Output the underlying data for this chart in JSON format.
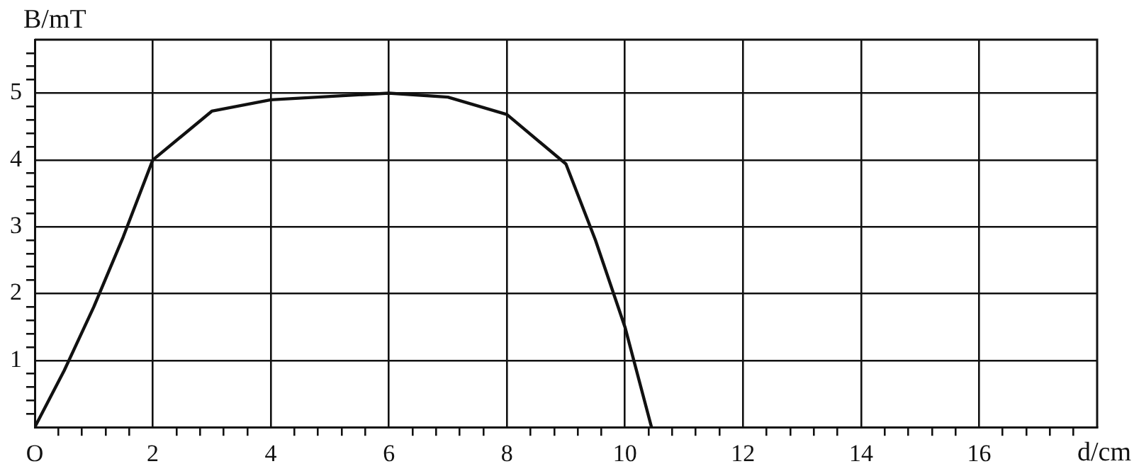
{
  "chart_data": {
    "type": "line",
    "xlabel": "d/cm",
    "ylabel": "B/mT",
    "x": [
      0,
      0.5,
      1,
      1.5,
      2,
      3,
      4,
      6,
      7,
      8,
      9,
      9.5,
      10,
      10.45
    ],
    "series": [
      {
        "color": "#111111",
        "values": [
          0,
          0.85,
          1.8,
          2.85,
          4,
          4.73,
          4.9,
          5,
          4.94,
          4.68,
          3.94,
          2.8,
          1.5,
          0
        ]
      }
    ],
    "xlim": [
      0,
      18
    ],
    "xticks": [
      {
        "value": 0,
        "label": "O"
      },
      {
        "value": 0.4,
        "label": null
      },
      {
        "value": 0.8,
        "label": null
      },
      {
        "value": 1.2,
        "label": null
      },
      {
        "value": 1.6,
        "label": null
      },
      2,
      {
        "value": 2.4,
        "label": null
      },
      {
        "value": 2.8,
        "label": null
      },
      {
        "value": 3.2,
        "label": null
      },
      {
        "value": 3.6,
        "label": null
      },
      4,
      {
        "value": 4.4,
        "label": null
      },
      {
        "value": 4.8,
        "label": null
      },
      {
        "value": 5.2,
        "label": null
      },
      {
        "value": 5.6,
        "label": null
      },
      6,
      {
        "value": 6.4,
        "label": null
      },
      {
        "value": 6.8,
        "label": null
      },
      {
        "value": 7.2,
        "label": null
      },
      {
        "value": 7.6,
        "label": null
      },
      8,
      {
        "value": 8.4,
        "label": null
      },
      {
        "value": 8.8,
        "label": null
      },
      {
        "value": 9.2,
        "label": null
      },
      {
        "value": 9.6,
        "label": null
      },
      10,
      {
        "value": 10.4,
        "label": null
      },
      {
        "value": 10.8,
        "label": null
      },
      {
        "value": 11.2,
        "label": null
      },
      {
        "value": 11.6,
        "label": null
      },
      12,
      {
        "value": 12.4,
        "label": null
      },
      {
        "value": 12.8,
        "label": null
      },
      {
        "value": 13.2,
        "label": null
      },
      {
        "value": 13.6,
        "label": null
      },
      14,
      {
        "value": 14.4,
        "label": null
      },
      {
        "value": 14.8,
        "label": null
      },
      {
        "value": 15.2,
        "label": null
      },
      {
        "value": 15.6,
        "label": null
      },
      16,
      {
        "value": 16.4,
        "label": null
      },
      {
        "value": 16.8,
        "label": null
      },
      {
        "value": 17.2,
        "label": null
      },
      {
        "value": 17.6,
        "label": null
      }
    ],
    "ylim": [
      0,
      5.8
    ],
    "yticks": [
      {
        "value": 0.2,
        "label": null
      },
      {
        "value": 0.4,
        "label": null
      },
      {
        "value": 0.6,
        "label": null
      },
      {
        "value": 0.8,
        "label": null
      },
      1,
      {
        "value": 1.2,
        "label": null
      },
      {
        "value": 1.4,
        "label": null
      },
      {
        "value": 1.6,
        "label": null
      },
      {
        "value": 1.8,
        "label": null
      },
      2,
      {
        "value": 2.2,
        "label": null
      },
      {
        "value": 2.4,
        "label": null
      },
      {
        "value": 2.6,
        "label": null
      },
      {
        "value": 2.8,
        "label": null
      },
      3,
      {
        "value": 3.2,
        "label": null
      },
      {
        "value": 3.4,
        "label": null
      },
      {
        "value": 3.6,
        "label": null
      },
      {
        "value": 3.8,
        "label": null
      },
      4,
      {
        "value": 4.2,
        "label": null
      },
      {
        "value": 4.4,
        "label": null
      },
      {
        "value": 4.6,
        "label": null
      },
      {
        "value": 4.8,
        "label": null
      },
      5,
      {
        "value": 5.2,
        "label": null
      },
      {
        "value": 5.4,
        "label": null
      },
      {
        "value": 5.6,
        "label": null
      }
    ],
    "grid": true,
    "legend": false,
    "marker": "none",
    "line_style": "solid"
  }
}
